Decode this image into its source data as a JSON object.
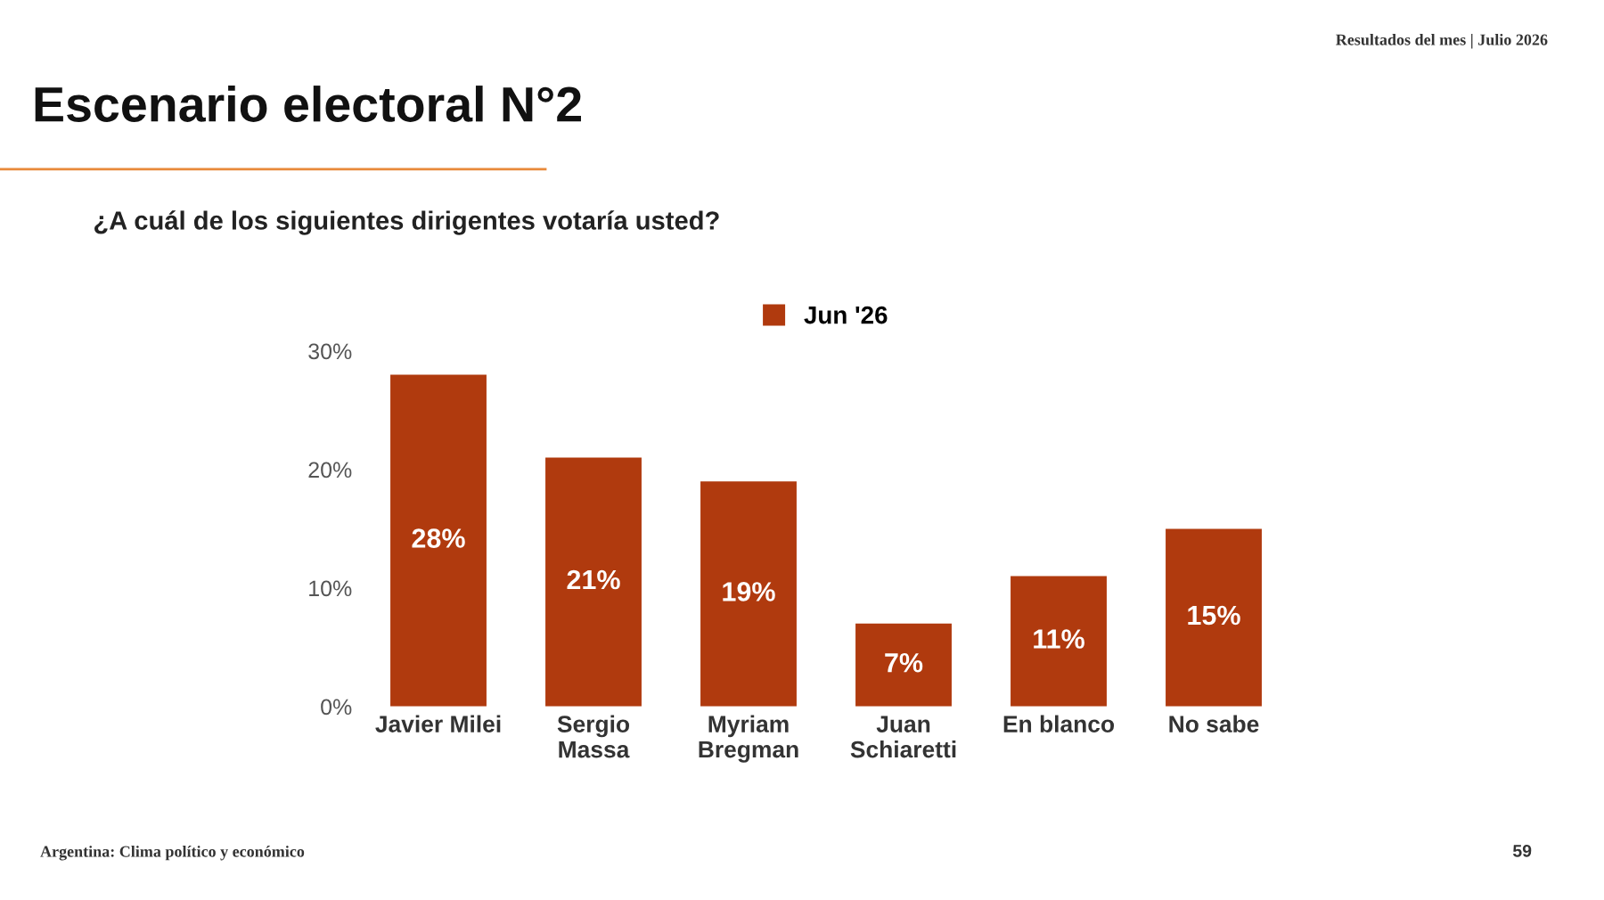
{
  "chart_data": {
    "type": "bar",
    "title": "Escenario electoral N°2",
    "subtitle": "¿A cuál de los siguientes dirigentes votaría usted?",
    "categories": [
      "Javier Milei",
      "Sergio\nMassa",
      "Myriam\nBregman",
      "Juan\nSchiaretti",
      "En blanco",
      "No sabe"
    ],
    "series": [
      {
        "name": "Jun '26",
        "color": "#b03a0e",
        "values": [
          28,
          21,
          19,
          7,
          11,
          15
        ],
        "value_labels": [
          "28%",
          "21%",
          "19%",
          "7%",
          "11%",
          "15%"
        ]
      }
    ],
    "ylim": [
      0,
      30
    ],
    "yticks": [
      {
        "value": 0,
        "label": "0%"
      },
      {
        "value": 10,
        "label": "10%"
      },
      {
        "value": 20,
        "label": "20%"
      },
      {
        "value": 30,
        "label": "30%"
      }
    ],
    "grid": false,
    "legend": "top",
    "annotations": [
      "Resultados del mes | Julio 2026",
      "Argentina: Clima político y económico",
      "59"
    ]
  }
}
